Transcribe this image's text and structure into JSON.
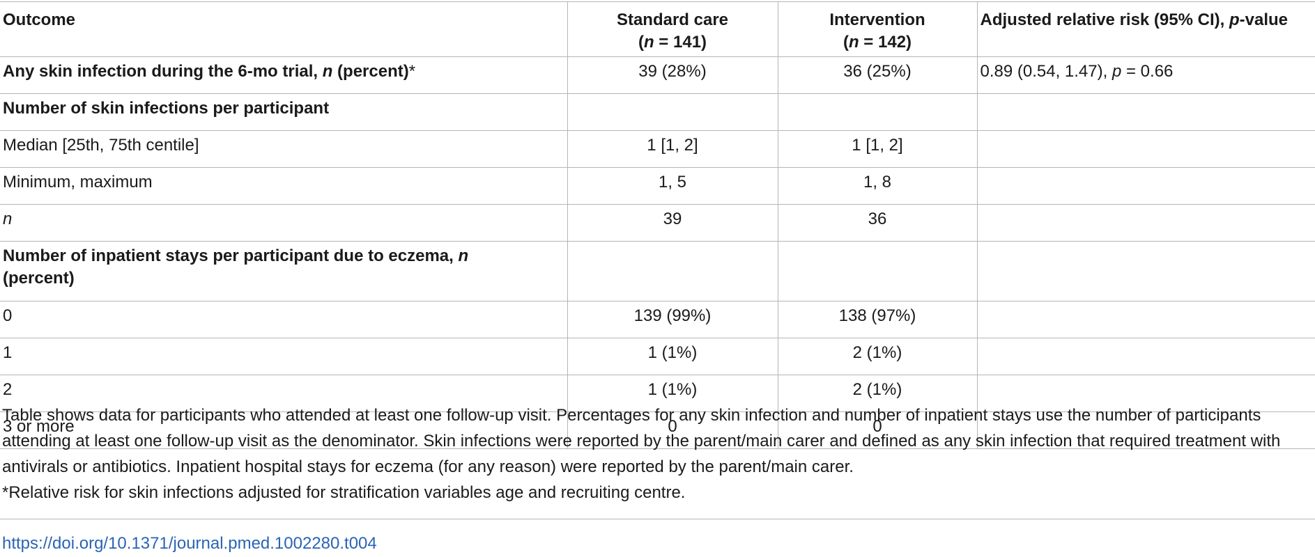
{
  "table": {
    "headers": {
      "outcome": "Outcome",
      "standard_care": {
        "label": "Standard care",
        "n_prefix": "(",
        "n_letter": "n",
        "n_eq": " = 141)"
      },
      "intervention": {
        "label": "Intervention",
        "n_prefix": "(",
        "n_letter": "n",
        "n_eq": " = 142)"
      },
      "adjusted_rr": {
        "label": "Adjusted relative risk (95% CI), ",
        "p_letter": "p",
        "tail": "-value"
      }
    },
    "rows": [
      {
        "outcome_a": "Any skin infection during the 6-mo trial, ",
        "outcome_n": "n",
        "outcome_b": " (percent)",
        "outcome_star": "*",
        "standard_care": "39 (28%)",
        "intervention": "36 (25%)",
        "adjusted_rr_a": "0.89 (0.54, 1.47), ",
        "adjusted_rr_p": "p",
        "adjusted_rr_b": " = 0.66"
      },
      {
        "outcome": "Number of skin infections per participant",
        "standard_care": "",
        "intervention": "",
        "adjusted_rr": ""
      },
      {
        "outcome": "Median [25th, 75th centile]",
        "standard_care": "1 [1, 2]",
        "intervention": "1 [1, 2]",
        "adjusted_rr": ""
      },
      {
        "outcome": "Minimum, maximum",
        "standard_care": "1, 5",
        "intervention": "1, 8",
        "adjusted_rr": ""
      },
      {
        "outcome": "n",
        "standard_care": "39",
        "intervention": "36",
        "adjusted_rr": ""
      },
      {
        "outcome_a": "Number of inpatient stays per participant due to eczema, ",
        "outcome_n": "n",
        "outcome_b": " (percent)",
        "standard_care": "",
        "intervention": "",
        "adjusted_rr": ""
      },
      {
        "outcome": "0",
        "standard_care": "139 (99%)",
        "intervention": "138 (97%)",
        "adjusted_rr": ""
      },
      {
        "outcome": "1",
        "standard_care": "1 (1%)",
        "intervention": "2 (1%)",
        "adjusted_rr": ""
      },
      {
        "outcome": "2",
        "standard_care": "1 (1%)",
        "intervention": "2 (1%)",
        "adjusted_rr": ""
      },
      {
        "outcome": "3 or more",
        "standard_care": "0",
        "intervention": "0",
        "adjusted_rr": ""
      }
    ]
  },
  "footnotes": {
    "main": "Table shows data for participants who attended at least one follow-up visit. Percentages for any skin infection and number of inpatient stays use the number of participants attending at least one follow-up visit as the denominator. Skin infections were reported by the parent/main carer and defined as any skin infection that required treatment with antivirals or antibiotics. Inpatient hospital stays for eczema (for any reason) were reported by the parent/main carer.",
    "star": "*Relative risk for skin infections adjusted for stratification variables age and recruiting centre."
  },
  "doi": {
    "text": "https://doi.org/10.1371/journal.pmed.1002280.t004",
    "color": "#2a64b4"
  }
}
